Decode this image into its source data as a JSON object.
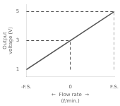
{
  "chart_data": {
    "type": "line",
    "series": [
      {
        "x": [
          -1,
          1
        ],
        "values": [
          1,
          5
        ],
        "color": "#555555",
        "line_style": "solid"
      },
      {
        "x": [
          -1,
          0
        ],
        "values": [
          3,
          3
        ],
        "color": "#444444",
        "line_style": "dashed"
      },
      {
        "x": [
          -1,
          1
        ],
        "values": [
          5,
          5
        ],
        "color": "#444444",
        "line_style": "dashed"
      },
      {
        "x": [
          0,
          0
        ],
        "values": [
          1,
          3
        ],
        "color": "#444444",
        "line_style": "dashed"
      },
      {
        "x": [
          1,
          1
        ],
        "values": [
          1,
          5
        ],
        "color": "#444444",
        "line_style": "dashed"
      }
    ],
    "xlim": [
      -1.0,
      1.0
    ],
    "xticks": [
      {
        "value": -1,
        "label": "-F.S."
      },
      0,
      {
        "value": 1,
        "label": "F.S."
      }
    ],
    "ylim": [
      0.5,
      5.5
    ],
    "yticks": [
      1,
      3,
      5
    ],
    "xlabel": [
      "←  Flow rate  →",
      "(ℓ/min.)"
    ],
    "ylabel": [
      "Output",
      "voltage (V)"
    ],
    "grid": false
  }
}
